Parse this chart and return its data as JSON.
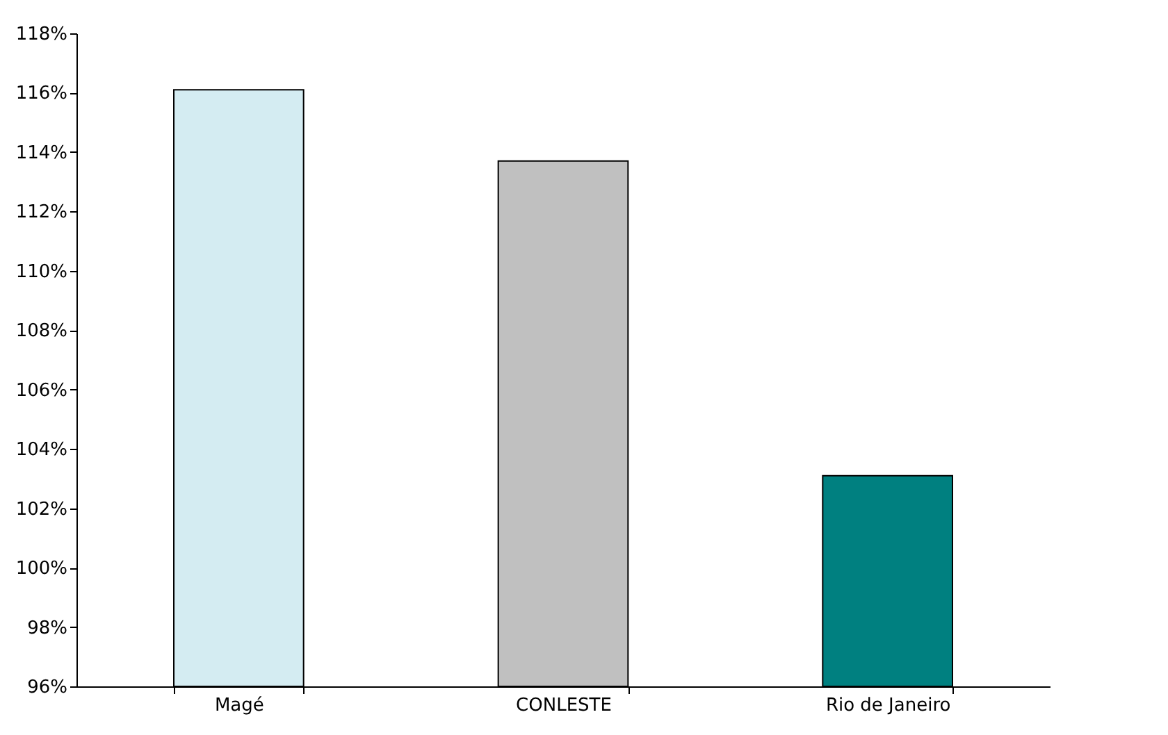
{
  "chart_data": {
    "type": "bar",
    "categories": [
      "Magé",
      "CONLESTE",
      "Rio de Janeiro"
    ],
    "values": [
      116.1,
      113.7,
      103.1
    ],
    "colors": [
      "#d4ecf2",
      "#c0c0c0",
      "#008080"
    ],
    "ylim": [
      96,
      118
    ],
    "yticks": [
      {
        "value": 96,
        "label": "96%"
      },
      {
        "value": 98,
        "label": "98%"
      },
      {
        "value": 100,
        "label": "100%"
      },
      {
        "value": 102,
        "label": "102%"
      },
      {
        "value": 104,
        "label": "104%"
      },
      {
        "value": 106,
        "label": "106%"
      },
      {
        "value": 108,
        "label": "108%"
      },
      {
        "value": 110,
        "label": "110%"
      },
      {
        "value": 112,
        "label": "112%"
      },
      {
        "value": 114,
        "label": "114%"
      },
      {
        "value": 116,
        "label": "116%"
      },
      {
        "value": 118,
        "label": "118%"
      }
    ],
    "grid": false
  }
}
